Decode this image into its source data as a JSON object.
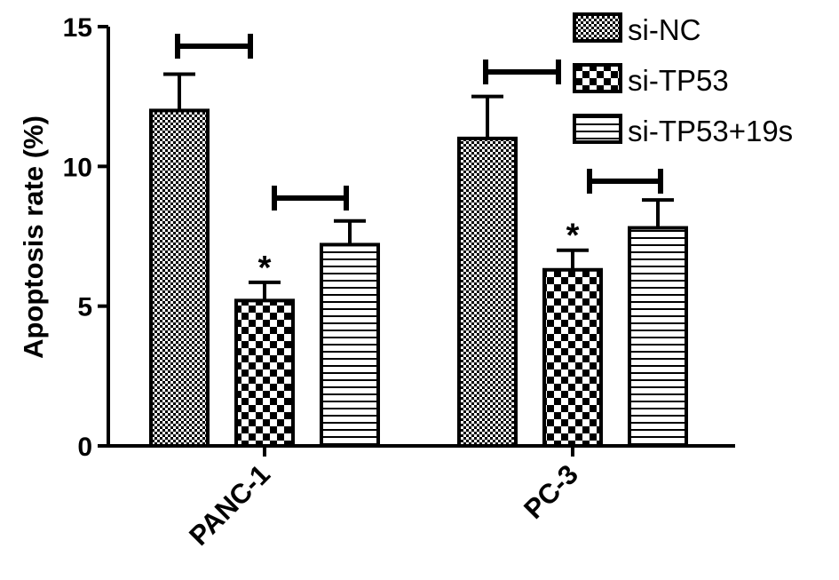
{
  "chart_data": {
    "type": "bar",
    "ylabel": "Apoptosis rate (%)",
    "ylim": [
      0,
      15
    ],
    "yticks": [
      "0",
      "5",
      "10",
      "15"
    ],
    "categories": [
      "PANC-1",
      "PC-3"
    ],
    "series": [
      {
        "name": "si-NC",
        "values": [
          12.0,
          11.0
        ],
        "errors": [
          1.3,
          1.5
        ],
        "pattern": "fine-check"
      },
      {
        "name": "si-TP53",
        "values": [
          5.2,
          6.3
        ],
        "errors": [
          0.65,
          0.7
        ],
        "pattern": "coarse-check"
      },
      {
        "name": "si-TP53+19s",
        "values": [
          7.2,
          7.8
        ],
        "errors": [
          0.85,
          1.0
        ],
        "pattern": "horizontal-lines"
      }
    ],
    "significance_marker": "*",
    "significance_series": [
      "si-TP53"
    ],
    "legend_position": "top-right",
    "colors": {
      "bar_outline": "#000000",
      "background": "#ffffff"
    }
  }
}
